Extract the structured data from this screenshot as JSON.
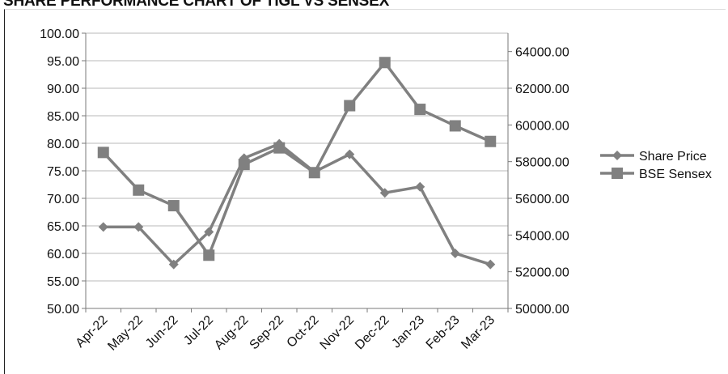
{
  "title": "SHARE PERFORMANCE CHART OF TIGL VS SENSEX",
  "chart_data": {
    "type": "line",
    "categories": [
      "Apr-22",
      "May-22",
      "Jun-22",
      "Jul-22",
      "Aug-22",
      "Sep-22",
      "Oct-22",
      "Nov-22",
      "Dec-22",
      "Jan-23",
      "Feb-23",
      "Mar-23"
    ],
    "series": [
      {
        "name": "Share Price",
        "axis": "left",
        "marker": "diamond",
        "values": [
          64.8,
          64.8,
          58.0,
          63.9,
          77.3,
          79.9,
          74.8,
          78.0,
          71.0,
          72.1,
          60.0,
          58.0
        ]
      },
      {
        "name": "BSE Sensex",
        "axis": "right",
        "marker": "square",
        "values": [
          58500,
          56450,
          55600,
          52900,
          57850,
          58750,
          57400,
          61050,
          63400,
          60850,
          59950,
          59100
        ]
      }
    ],
    "y_left": {
      "min": 50,
      "max": 100,
      "step": 5,
      "tick_labels": [
        "50.00",
        "55.00",
        "60.00",
        "65.00",
        "70.00",
        "75.00",
        "80.00",
        "85.00",
        "90.00",
        "95.00",
        "100.00"
      ]
    },
    "y_right": {
      "min": 50000,
      "max": 65000,
      "step": 2000,
      "tick_labels": [
        "50000.00",
        "52000.00",
        "54000.00",
        "56000.00",
        "58000.00",
        "60000.00",
        "62000.00",
        "64000.00"
      ]
    },
    "grid": true,
    "legend_position": "right",
    "line_color": "#808080",
    "grid_color": "#b8b8b8"
  }
}
